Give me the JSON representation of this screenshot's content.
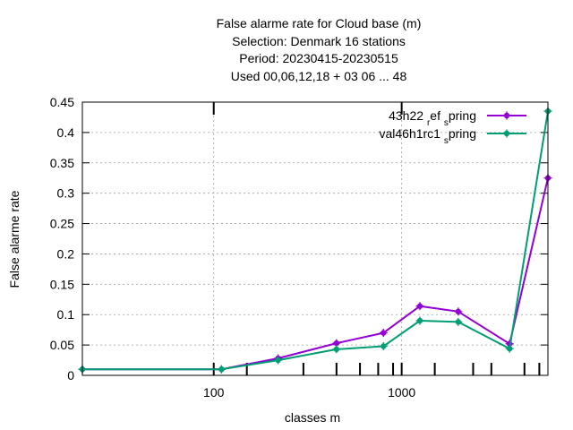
{
  "chart_data": {
    "type": "line",
    "title": [
      "False alarme rate  for Cloud base (m)",
      "Selection: Denmark     16 stations",
      "Period: 20230415-20230515",
      "Used  00,06,12,18  + 03 06 ... 48"
    ],
    "xlabel": "classes m",
    "ylabel": "False alarme rate",
    "x_scale": "log",
    "xlim": [
      20,
      6000
    ],
    "ylim": [
      0,
      0.45
    ],
    "x_ticks": [
      {
        "value": 100,
        "label": "100"
      },
      {
        "value": 1000,
        "label": "1000"
      }
    ],
    "x_minor_ticks": [
      150,
      300,
      450,
      600,
      750,
      900,
      1500,
      2400,
      3000,
      4500,
      5400
    ],
    "y_ticks": [
      {
        "value": 0,
        "label": "0"
      },
      {
        "value": 0.05,
        "label": "0.05"
      },
      {
        "value": 0.1,
        "label": "0.1"
      },
      {
        "value": 0.15,
        "label": "0.15"
      },
      {
        "value": 0.2,
        "label": "0.2"
      },
      {
        "value": 0.25,
        "label": "0.25"
      },
      {
        "value": 0.3,
        "label": "0.3"
      },
      {
        "value": 0.35,
        "label": "0.35"
      },
      {
        "value": 0.4,
        "label": "0.4"
      },
      {
        "value": 0.45,
        "label": "0.45"
      }
    ],
    "grid": true,
    "legend_position": "top-right",
    "series": [
      {
        "name": "43h22_ref_spring",
        "label_parts": [
          "43h22 ",
          "r",
          "ef ",
          "s",
          "pring"
        ],
        "color": "#9400d3",
        "x": [
          20,
          110,
          220,
          450,
          800,
          1250,
          2000,
          3750,
          6000
        ],
        "y": [
          0.01,
          0.01,
          0.028,
          0.053,
          0.07,
          0.114,
          0.105,
          0.052,
          0.325
        ]
      },
      {
        "name": "val46h1rc1_spring",
        "label_parts": [
          "val46h1rc1 ",
          "s",
          "pring"
        ],
        "color": "#009e73",
        "x": [
          20,
          110,
          220,
          450,
          800,
          1250,
          2000,
          3750,
          6000
        ],
        "y": [
          0.01,
          0.01,
          0.025,
          0.043,
          0.048,
          0.09,
          0.088,
          0.044,
          0.435
        ]
      }
    ]
  }
}
